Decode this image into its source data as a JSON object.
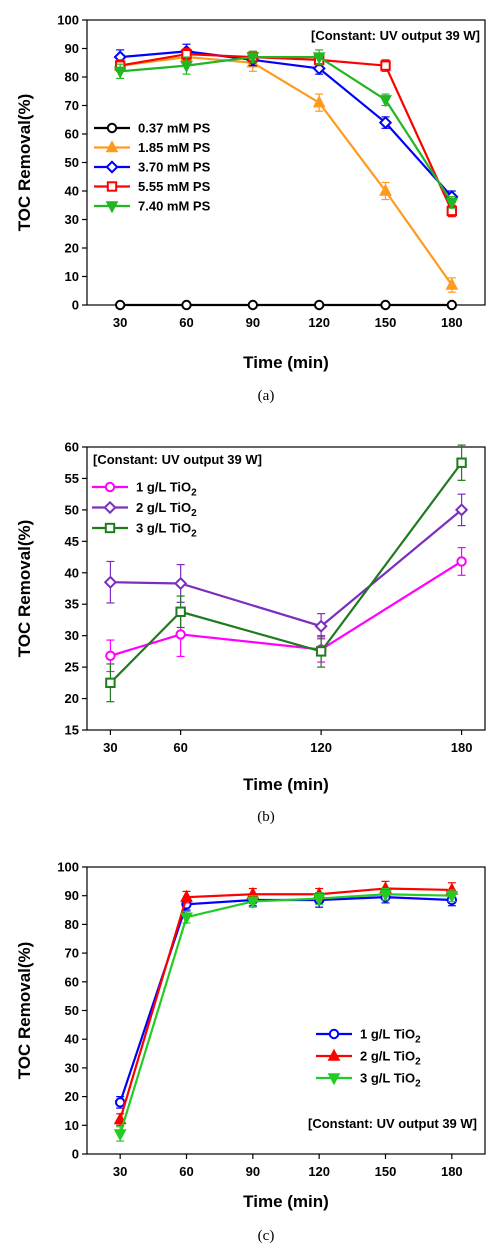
{
  "chart_data": [
    {
      "type": "line",
      "ylabel": "TOC Removal(%)",
      "xlabel": "Time (min)",
      "caption": "(a)",
      "annotation": "[Constant: UV output 39 W]",
      "x": [
        30,
        60,
        90,
        120,
        150,
        180
      ],
      "xticks": [
        "30",
        "60",
        "90",
        "120",
        "150",
        "180"
      ],
      "xlim": [
        15,
        195
      ],
      "ylim": [
        0,
        100
      ],
      "yticks": [
        "0",
        "10",
        "20",
        "30",
        "40",
        "50",
        "60",
        "70",
        "80",
        "90",
        "100"
      ],
      "grid": false,
      "legend": "middle-left",
      "series": [
        {
          "name": "0.37 mM PS",
          "color": "#000000",
          "marker": "circle",
          "values": [
            0,
            0,
            0,
            0,
            0,
            0
          ],
          "errors": [
            0,
            0,
            0,
            0,
            0,
            0
          ]
        },
        {
          "name": "1.85 mM PS",
          "color": "#FF9A1F",
          "marker": "triangle-up",
          "values": [
            84,
            87,
            85,
            71,
            40,
            7
          ],
          "errors": [
            2,
            2,
            3,
            3,
            3,
            2.5
          ]
        },
        {
          "name": "3.70 mM PS",
          "color": "#0000FF",
          "marker": "diamond",
          "values": [
            87,
            89,
            86,
            83,
            64,
            38
          ],
          "errors": [
            2.5,
            2.5,
            2,
            2,
            2,
            2
          ]
        },
        {
          "name": "5.55 mM PS",
          "color": "#FF0000",
          "marker": "square",
          "values": [
            84,
            88,
            87,
            86,
            84,
            33
          ],
          "errors": [
            2,
            2,
            2,
            2,
            2,
            2
          ]
        },
        {
          "name": "7.40 mM PS",
          "color": "#22B622",
          "marker": "triangle-down",
          "values": [
            82,
            84,
            87,
            87,
            72,
            36
          ],
          "errors": [
            2.5,
            3,
            2,
            2.5,
            2,
            2
          ]
        }
      ]
    },
    {
      "type": "line",
      "ylabel": "TOC Removal(%)",
      "xlabel": "Time (min)",
      "caption": "(b)",
      "annotation": "[Constant: UV output 39 W]",
      "x": [
        30,
        60,
        120,
        180
      ],
      "xticks": [
        "30",
        "60",
        "120",
        "180"
      ],
      "xlim": [
        20,
        190
      ],
      "ylim": [
        15,
        60
      ],
      "yticks": [
        "15",
        "20",
        "25",
        "30",
        "35",
        "40",
        "45",
        "50",
        "55",
        "60"
      ],
      "grid": false,
      "legend": "top-left",
      "series": [
        {
          "name": "1 g/L TiO",
          "name_sub": "2",
          "color": "#FF00FF",
          "marker": "circle",
          "values": [
            26.8,
            30.2,
            27.8,
            41.8
          ],
          "errors": [
            2.5,
            3.5,
            2,
            2.2
          ]
        },
        {
          "name": "2 g/L TiO",
          "name_sub": "2",
          "color": "#7B2FBE",
          "marker": "diamond",
          "values": [
            38.5,
            38.3,
            31.5,
            50
          ],
          "errors": [
            3.3,
            3,
            2,
            2.5
          ]
        },
        {
          "name": "3 g/L TiO",
          "name_sub": "2",
          "color": "#1E7B1E",
          "marker": "square",
          "values": [
            22.5,
            33.8,
            27.5,
            57.5
          ],
          "errors": [
            3,
            2.5,
            2.5,
            2.8
          ]
        }
      ]
    },
    {
      "type": "line",
      "ylabel": "TOC Removal(%)",
      "xlabel": "Time (min)",
      "caption": "(c)",
      "annotation": "[Constant: UV output 39 W]",
      "x": [
        30,
        60,
        90,
        120,
        150,
        180
      ],
      "xticks": [
        "30",
        "60",
        "90",
        "120",
        "150",
        "180"
      ],
      "xlim": [
        15,
        195
      ],
      "ylim": [
        0,
        100
      ],
      "yticks": [
        "0",
        "10",
        "20",
        "30",
        "40",
        "50",
        "60",
        "70",
        "80",
        "90",
        "100"
      ],
      "grid": false,
      "legend": "lower-right",
      "series": [
        {
          "name": "1 g/L TiO",
          "name_sub": "2",
          "color": "#0000FF",
          "marker": "circle",
          "values": [
            18,
            87,
            88.5,
            88.5,
            89.5,
            88.5
          ],
          "errors": [
            2,
            2,
            2,
            2.5,
            2,
            2
          ]
        },
        {
          "name": "2 g/L TiO",
          "name_sub": "2",
          "color": "#FF0000",
          "marker": "triangle-up",
          "values": [
            12,
            89.5,
            90.5,
            90.5,
            92.5,
            92
          ],
          "errors": [
            2,
            2,
            2,
            2,
            2.5,
            2.5
          ]
        },
        {
          "name": "3 g/L TiO",
          "name_sub": "2",
          "color": "#22CC22",
          "marker": "triangle-down",
          "values": [
            7,
            82.5,
            88,
            89,
            90.5,
            90
          ],
          "errors": [
            2.5,
            2,
            2,
            2,
            2,
            2
          ]
        }
      ]
    }
  ]
}
